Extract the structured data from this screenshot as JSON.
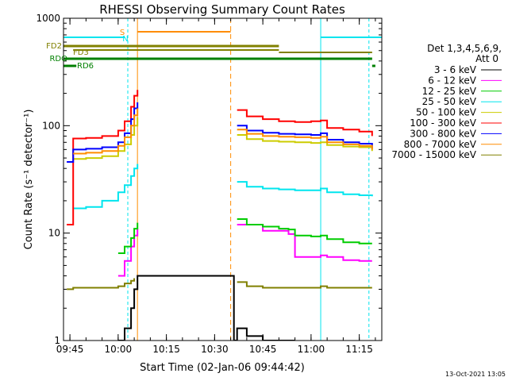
{
  "chart_data": {
    "type": "line",
    "title": "RHESSI Observing Summary Count Rates",
    "xlabel": "Start Time (02-Jan-06 09:44:42)",
    "ylabel": "Count Rate (s⁻¹ detector⁻¹)",
    "y_scale": "log",
    "ylim": [
      1,
      1000
    ],
    "xlim": [
      "09:43",
      "11:22"
    ],
    "y_ticks": [
      "1",
      "10",
      "100",
      "1000"
    ],
    "x_ticks": [
      "09:45",
      "10:00",
      "10:15",
      "10:30",
      "10:45",
      "11:00",
      "11:15"
    ],
    "footer_timestamp": "13-Oct-2021 13:05",
    "legend": {
      "placement": "right",
      "header": [
        "Det 1,3,4,5,6,9,",
        "Att 0"
      ]
    },
    "flags": [
      {
        "label": "FD2",
        "color": "#808000"
      },
      {
        "label": "FD3",
        "color": "#808000"
      },
      {
        "label": "RDO",
        "color": "#008000"
      },
      {
        "label": "RD6",
        "color": "#008000"
      },
      {
        "label": "S",
        "color": "#ff8c00"
      },
      {
        "label": "N",
        "color": "#00e5ee"
      }
    ],
    "series": [
      {
        "name": "3 - 6 keV",
        "color": "#000000",
        "x": [
          "09:44",
          "09:46",
          "10:00",
          "10:02",
          "10:04",
          "10:05",
          "10:06",
          "10:36",
          "10:37",
          "10:40",
          "10:45",
          "10:50",
          "10:53",
          "10:55",
          "11:00",
          "11:05",
          "11:10",
          "11:15",
          "11:19"
        ],
        "y": [
          null,
          null,
          1.0,
          1.3,
          2.0,
          3.0,
          4.0,
          1.0,
          1.3,
          1.1,
          1.0,
          1.0,
          1.0,
          1.0,
          null,
          null,
          null,
          null,
          null
        ]
      },
      {
        "name": "6 - 12 keV",
        "color": "#ff00ff",
        "x": [
          "09:44",
          "09:46",
          "09:55",
          "10:00",
          "10:02",
          "10:04",
          "10:05",
          "10:06",
          "10:36",
          "10:37",
          "10:45",
          "10:53",
          "10:55",
          "11:00",
          "11:03",
          "11:05",
          "11:10",
          "11:15",
          "11:19"
        ],
        "y": [
          null,
          null,
          null,
          4.0,
          5.5,
          7.5,
          9.5,
          11.0,
          null,
          12.0,
          10.5,
          9.8,
          6.0,
          6.0,
          6.2,
          6.0,
          5.6,
          5.5,
          5.5
        ]
      },
      {
        "name": "12 - 25 keV",
        "color": "#00cc00",
        "x": [
          "09:44",
          "09:46",
          "09:55",
          "10:00",
          "10:02",
          "10:04",
          "10:05",
          "10:06",
          "10:36",
          "10:37",
          "10:40",
          "10:45",
          "10:50",
          "10:53",
          "10:55",
          "11:00",
          "11:03",
          "11:05",
          "11:10",
          "11:15",
          "11:19"
        ],
        "y": [
          null,
          null,
          null,
          6.5,
          7.5,
          9.0,
          11.0,
          12.5,
          null,
          13.5,
          12.0,
          11.5,
          11.0,
          10.8,
          9.5,
          9.3,
          9.5,
          8.8,
          8.2,
          8.0,
          8.0
        ]
      },
      {
        "name": "25 - 50 keV",
        "color": "#00e5ee",
        "x": [
          "09:44",
          "09:46",
          "09:50",
          "09:55",
          "10:00",
          "10:02",
          "10:04",
          "10:05",
          "10:06",
          "10:36",
          "10:37",
          "10:40",
          "10:45",
          "10:50",
          "10:55",
          "11:00",
          "11:03",
          "11:05",
          "11:10",
          "11:15",
          "11:19"
        ],
        "y": [
          null,
          17,
          17.5,
          20,
          24,
          28,
          34,
          40,
          44,
          null,
          30,
          27,
          26,
          25.5,
          25,
          25,
          26,
          24,
          23,
          22.5,
          22
        ]
      },
      {
        "name": "50 - 100 keV",
        "color": "#cccc00",
        "x": [
          "09:44",
          "09:46",
          "09:50",
          "09:55",
          "10:00",
          "10:02",
          "10:04",
          "10:05",
          "10:06",
          "10:36",
          "10:37",
          "10:40",
          "10:45",
          "10:50",
          "10:55",
          "11:00",
          "11:03",
          "11:05",
          "11:10",
          "11:15",
          "11:19"
        ],
        "y": [
          null,
          49,
          50,
          52,
          58,
          67,
          82,
          100,
          120,
          null,
          82,
          75,
          72,
          71,
          70,
          69,
          70,
          66,
          64,
          63,
          58
        ]
      },
      {
        "name": "100 - 300 keV",
        "color": "#ff0000",
        "x": [
          "09:44",
          "09:46",
          "09:50",
          "09:55",
          "10:00",
          "10:02",
          "10:04",
          "10:05",
          "10:06",
          "10:36",
          "10:37",
          "10:40",
          "10:45",
          "10:50",
          "10:55",
          "11:00",
          "11:03",
          "11:05",
          "11:10",
          "11:15",
          "11:19"
        ],
        "y": [
          12,
          76,
          77,
          80,
          90,
          110,
          150,
          190,
          215,
          null,
          140,
          122,
          115,
          110,
          108,
          110,
          112,
          95,
          92,
          88,
          80
        ]
      },
      {
        "name": "300 - 800 keV",
        "color": "#0000ff",
        "x": [
          "09:44",
          "09:46",
          "09:50",
          "09:55",
          "10:00",
          "10:02",
          "10:04",
          "10:05",
          "10:06",
          "10:36",
          "10:37",
          "10:40",
          "10:45",
          "10:50",
          "10:55",
          "11:00",
          "11:03",
          "11:05",
          "11:10",
          "11:15",
          "11:19"
        ],
        "y": [
          46,
          60,
          61,
          63,
          70,
          85,
          115,
          145,
          165,
          null,
          100,
          90,
          86,
          84,
          83,
          82,
          85,
          74,
          70,
          68,
          62
        ]
      },
      {
        "name": "800 - 7000 keV",
        "color": "#ff8c00",
        "x": [
          "09:44",
          "09:46",
          "09:50",
          "09:55",
          "10:00",
          "10:02",
          "10:04",
          "10:05",
          "10:06",
          "10:36",
          "10:37",
          "10:40",
          "10:45",
          "10:50",
          "10:55",
          "11:00",
          "11:03",
          "11:05",
          "11:10",
          "11:15",
          "11:19"
        ],
        "y": [
          null,
          55,
          56,
          58,
          65,
          78,
          100,
          125,
          145,
          null,
          92,
          84,
          80,
          79,
          78,
          77,
          79,
          70,
          67,
          65,
          60
        ]
      },
      {
        "name": "7000 - 15000 keV",
        "color": "#808000",
        "x": [
          "09:44",
          "09:46",
          "09:50",
          "09:55",
          "10:00",
          "10:02",
          "10:04",
          "10:05",
          "10:06",
          "10:36",
          "10:37",
          "10:40",
          "10:45",
          "10:50",
          "10:55",
          "11:00",
          "11:03",
          "11:05",
          "11:10",
          "11:15",
          "11:19"
        ],
        "y": [
          3.0,
          3.1,
          3.1,
          3.1,
          3.2,
          3.4,
          3.6,
          3.8,
          null,
          null,
          3.5,
          3.2,
          3.1,
          3.1,
          3.1,
          3.1,
          3.2,
          3.1,
          3.1,
          3.1,
          3.1
        ]
      }
    ]
  }
}
